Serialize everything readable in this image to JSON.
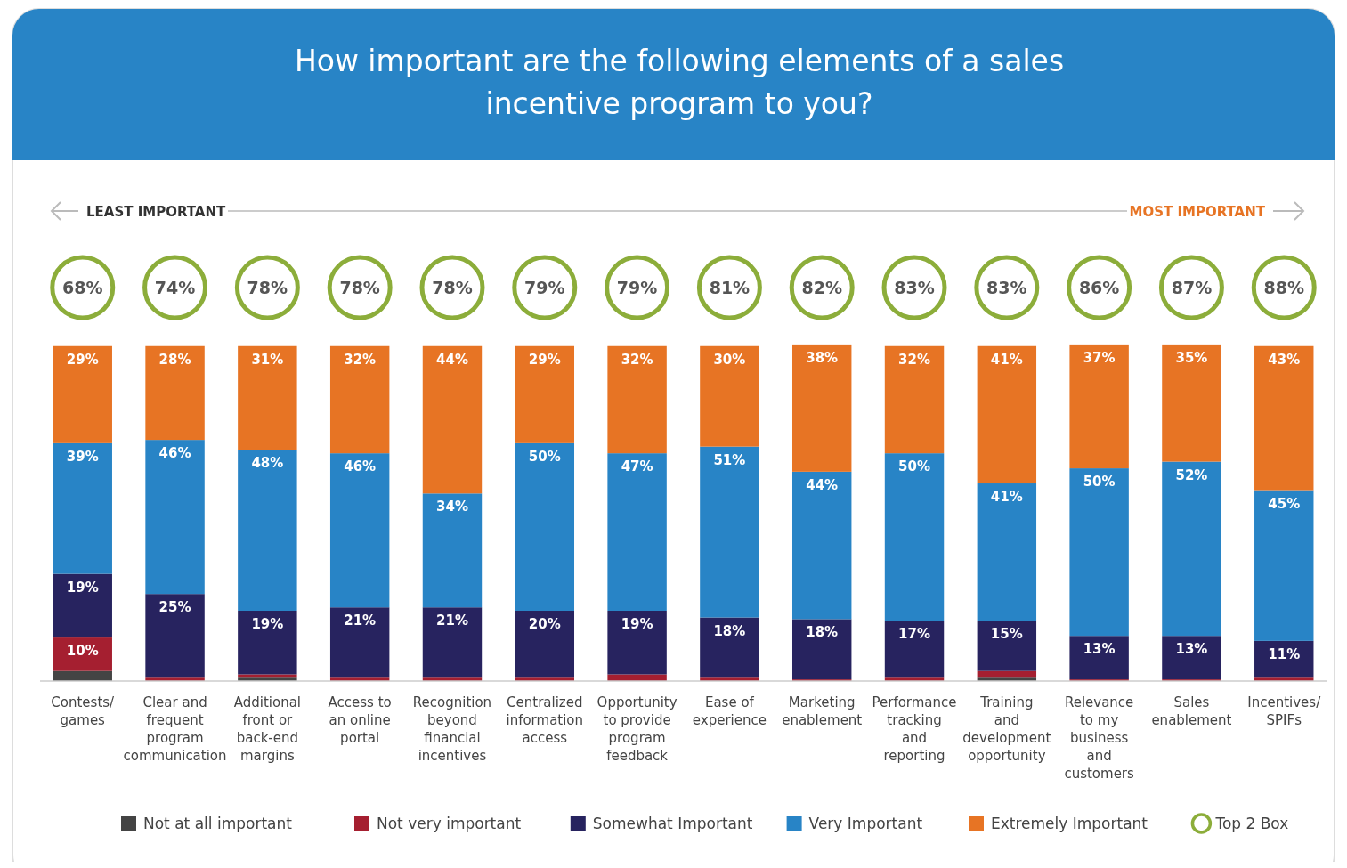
{
  "chart_data": {
    "type": "bar",
    "stacked": true,
    "title": "How important are the following elements of a sales incentive program to you?",
    "annotations": [
      "LEAST IMPORTANT",
      "MOST IMPORTANT",
      "Top 2 Box",
      "68%",
      "74%",
      "78%",
      "78%",
      "78%",
      "79%",
      "79%",
      "81%",
      "82%",
      "83%",
      "83%",
      "86%",
      "87%",
      "88%"
    ],
    "categories": [
      "Contests/ games",
      "Clear and frequent program communication",
      "Additional front or back-end margins",
      "Access to an online portal",
      "Recognition beyond financial incentives",
      "Centralized information access",
      "Opportunity to provide program feedback",
      "Ease of experience",
      "Marketing enablement",
      "Performance tracking and reporting",
      "Training and development opportunity",
      "Relevance to my business and customers",
      "Sales enablement",
      "Incentives/ SPIFs"
    ],
    "ylim": [
      0,
      101
    ],
    "legend": "bottom",
    "series": [
      {
        "name": "Not at all important",
        "color": "#444444",
        "values": [
          3,
          0,
          1,
          0,
          0,
          0,
          0,
          0,
          0,
          0,
          1,
          0,
          0,
          0
        ]
      },
      {
        "name": "Not very important",
        "color": "#a51f30",
        "values": [
          10,
          1,
          1,
          1,
          1,
          1,
          2,
          1,
          0.5,
          1,
          2,
          0.5,
          0.5,
          1
        ],
        "value_labels": [
          "10%",
          null,
          null,
          null,
          null,
          null,
          null,
          null,
          null,
          null,
          null,
          null,
          null,
          null
        ]
      },
      {
        "name": "Somewhat Important",
        "color": "#27235f",
        "values": [
          19,
          25,
          19,
          21,
          21,
          20,
          19,
          18,
          18,
          17,
          15,
          13,
          13,
          11
        ],
        "value_labels": [
          "19%",
          "25%",
          "19%",
          "21%",
          "21%",
          "20%",
          "19%",
          "18%",
          "18%",
          "17%",
          "15%",
          "13%",
          "13%",
          "11%"
        ]
      },
      {
        "name": "Very Important",
        "color": "#2884c6",
        "values": [
          39,
          46,
          48,
          46,
          34,
          50,
          47,
          51,
          44,
          50,
          41,
          50,
          52,
          45
        ],
        "value_labels": [
          "39%",
          "46%",
          "48%",
          "46%",
          "34%",
          "50%",
          "47%",
          "51%",
          "44%",
          "50%",
          "41%",
          "50%",
          "52%",
          "45%"
        ]
      },
      {
        "name": "Extremely Important",
        "color": "#e77424",
        "values": [
          29,
          28,
          31,
          32,
          44,
          29,
          32,
          30,
          38,
          32,
          41,
          37,
          35,
          43
        ],
        "value_labels": [
          "29%",
          "28%",
          "31%",
          "32%",
          "44%",
          "29%",
          "32%",
          "30%",
          "38%",
          "32%",
          "41%",
          "37%",
          "35%",
          "43%"
        ]
      }
    ]
  }
}
